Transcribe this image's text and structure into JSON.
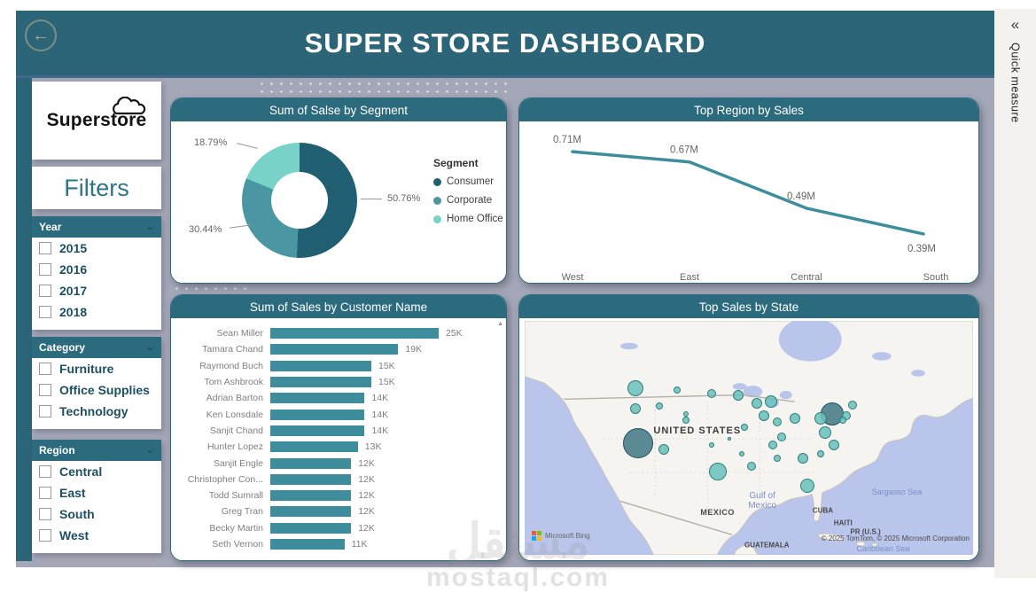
{
  "header": {
    "title": "SUPER STORE DASHBOARD",
    "back_icon": "←"
  },
  "right_panel": {
    "collapse_icon": "«",
    "label": "Quick measure"
  },
  "sidebar": {
    "logo_text": "Superstore",
    "filters_title": "Filters",
    "groups": [
      {
        "label": "Year",
        "items": [
          "2015",
          "2016",
          "2017",
          "2018"
        ]
      },
      {
        "label": "Category",
        "items": [
          "Furniture",
          "Office Supplies",
          "Technology"
        ]
      },
      {
        "label": "Region",
        "items": [
          "Central",
          "East",
          "South",
          "West"
        ]
      }
    ]
  },
  "colors": {
    "header_teal": "#2b6577",
    "card_teal": "#2c6b7d",
    "accent": "#3e8d9c",
    "consumer": "#205f72",
    "corporate": "#4a96a3",
    "home_office": "#79d2c8",
    "background": "#a4a7b8",
    "map_water": "#b9c5ea",
    "map_land": "#f6f4f0"
  },
  "chart_data": [
    {
      "type": "pie",
      "title": "Sum of Salse by Segment",
      "legend_title": "Segment",
      "legend_position": "right",
      "slices": [
        {
          "label": "Consumer",
          "pct": 50.76,
          "color": "#205f72"
        },
        {
          "label": "Corporate",
          "pct": 30.44,
          "color": "#4a96a3"
        },
        {
          "label": "Home Office",
          "pct": 18.79,
          "color": "#79d2c8"
        }
      ],
      "callouts": {
        "home_office": "18.79%",
        "corporate": "30.44%",
        "consumer": "50.76%"
      }
    },
    {
      "type": "line",
      "title": "Top Region by Sales",
      "categories": [
        "West",
        "East",
        "Central",
        "South"
      ],
      "values": [
        0.71,
        0.67,
        0.49,
        0.39
      ],
      "value_labels": [
        "0.71M",
        "0.67M",
        "0.49M",
        "0.39M"
      ],
      "unit": "M",
      "color": "#3e8d9c",
      "grid": false
    },
    {
      "type": "bar",
      "title": "Sum of Sales by Customer Name",
      "orientation": "horizontal",
      "categories": [
        "Sean Miller",
        "Tamara Chand",
        "Raymond Buch",
        "Tom Ashbrook",
        "Adrian Barton",
        "Ken Lonsdale",
        "Sanjit Chand",
        "Hunter Lopez",
        "Sanjit Engle",
        "Christopher Con...",
        "Todd Sumrall",
        "Greg Tran",
        "Becky Martin",
        "Seth Vernon"
      ],
      "values": [
        25,
        19,
        15,
        15,
        14,
        14,
        14,
        13,
        12,
        12,
        12,
        12,
        12,
        11
      ],
      "value_labels": [
        "25K",
        "19K",
        "15K",
        "15K",
        "14K",
        "14K",
        "14K",
        "13K",
        "12K",
        "12K",
        "12K",
        "12K",
        "12K",
        "11K"
      ],
      "xlim": [
        0,
        25
      ],
      "color": "#3e8d9c"
    },
    {
      "type": "scatter-map",
      "title": "Top Sales by State",
      "bubbles": [
        {
          "x": 24.7,
          "y": 28.8,
          "r": 9
        },
        {
          "x": 24.7,
          "y": 37.4,
          "r": 6
        },
        {
          "x": 30.1,
          "y": 36.3,
          "r": 4
        },
        {
          "x": 34.0,
          "y": 29.5,
          "r": 4
        },
        {
          "x": 35.9,
          "y": 39.6,
          "r": 3
        },
        {
          "x": 41.7,
          "y": 30.9,
          "r": 5
        },
        {
          "x": 47.6,
          "y": 31.7,
          "r": 6
        },
        {
          "x": 51.8,
          "y": 35.3,
          "r": 6
        },
        {
          "x": 54.9,
          "y": 34.5,
          "r": 7
        },
        {
          "x": 68.5,
          "y": 39.6,
          "r": 13,
          "dark": true
        },
        {
          "x": 73.2,
          "y": 36.0,
          "r": 5
        },
        {
          "x": 71.8,
          "y": 40.6,
          "r": 5
        },
        {
          "x": 70.9,
          "y": 42.4,
          "r": 4
        },
        {
          "x": 66.0,
          "y": 41.7,
          "r": 7
        },
        {
          "x": 60.2,
          "y": 41.7,
          "r": 6
        },
        {
          "x": 56.3,
          "y": 43.2,
          "r": 5
        },
        {
          "x": 53.4,
          "y": 40.6,
          "r": 6
        },
        {
          "x": 57.3,
          "y": 49.6,
          "r": 5
        },
        {
          "x": 67.0,
          "y": 47.8,
          "r": 7
        },
        {
          "x": 68.9,
          "y": 53.2,
          "r": 6
        },
        {
          "x": 66.0,
          "y": 56.8,
          "r": 4
        },
        {
          "x": 62.1,
          "y": 58.6,
          "r": 6
        },
        {
          "x": 55.3,
          "y": 53.2,
          "r": 5
        },
        {
          "x": 49.1,
          "y": 45.3,
          "r": 4
        },
        {
          "x": 41.7,
          "y": 53.2,
          "r": 3
        },
        {
          "x": 35.9,
          "y": 42.4,
          "r": 4
        },
        {
          "x": 31.1,
          "y": 55.0,
          "r": 6
        },
        {
          "x": 25.2,
          "y": 52.2,
          "r": 17,
          "dark": true
        },
        {
          "x": 43.1,
          "y": 64.4,
          "r": 10
        },
        {
          "x": 50.5,
          "y": 62.2,
          "r": 5
        },
        {
          "x": 63.1,
          "y": 70.5,
          "r": 8
        },
        {
          "x": 56.3,
          "y": 58.6,
          "r": 4
        },
        {
          "x": 45.6,
          "y": 50.4,
          "r": 2
        },
        {
          "x": 48.5,
          "y": 56.8,
          "r": 3
        }
      ]
    }
  ],
  "map": {
    "labels": {
      "united_states": "UNITED STATES",
      "mexico": "MEXICO",
      "cuba": "CUBA",
      "haiti": "HAITI",
      "pr": "PR (U.S.)",
      "guatemala": "GUATEMALA",
      "gulf": "Gulf of Mexico",
      "sargasso": "Sargasso Sea",
      "caribbean": "Caribbean Sea"
    },
    "attribution": "© 2025 TomTom, © 2025 Microsoft Corporation",
    "bing": "Microsoft Bing"
  },
  "watermark": {
    "arabic": "مستقل",
    "latin": "mostaql.com"
  }
}
